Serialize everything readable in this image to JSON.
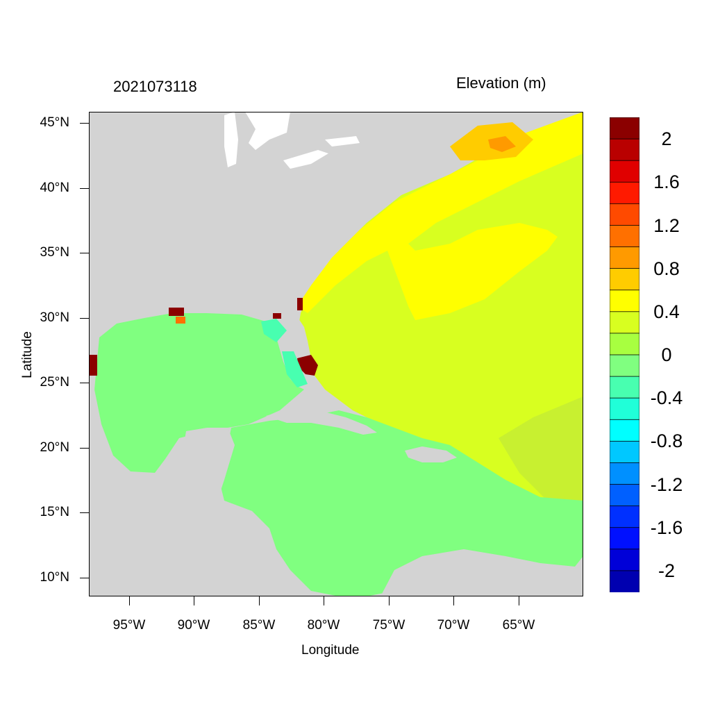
{
  "header": {
    "timestamp": "2021073118",
    "variable": "Elevation (m)"
  },
  "axes": {
    "xlabel": "Longitude",
    "ylabel": "Latitude",
    "yticks": [
      "45°N",
      "40°N",
      "35°N",
      "30°N",
      "25°N",
      "20°N",
      "15°N",
      "10°N"
    ],
    "xticks": [
      "95°W",
      "90°W",
      "85°W",
      "80°W",
      "75°W",
      "70°W",
      "65°W"
    ]
  },
  "colorbar": {
    "labels": [
      "2",
      "1.6",
      "1.2",
      "0.8",
      "0.4",
      "0",
      "-0.4",
      "-0.8",
      "-1.2",
      "-1.6",
      "-2"
    ],
    "colors": [
      "#8b0000",
      "#b90000",
      "#e00000",
      "#ff1a00",
      "#ff4a00",
      "#ff7000",
      "#ff9a00",
      "#ffcc00",
      "#ffff00",
      "#d8ff20",
      "#a8ff40",
      "#80ff80",
      "#48ffb0",
      "#20ffd8",
      "#00ffff",
      "#00c8ff",
      "#0090ff",
      "#0060ff",
      "#0030ff",
      "#0010ff",
      "#0000d8",
      "#0000b0"
    ]
  },
  "map": {
    "land_color": "#d3d3d3",
    "water_color": "#ffffff",
    "gulf_color": "#80ff80",
    "atlantic_color": "#d8ff20",
    "surge_color": "#ffff00",
    "peak_color": "#ffcc00",
    "coastal_high_color": "#8b0000"
  }
}
